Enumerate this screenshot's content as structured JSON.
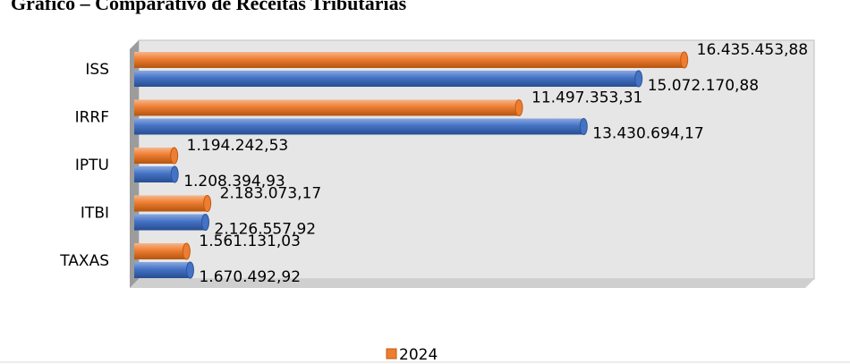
{
  "chart_data": {
    "type": "bar",
    "orientation": "horizontal",
    "title": "Gráfico – Comparativo de Receitas Tributárias",
    "categories": [
      "ISS",
      "IRRF",
      "IPTU",
      "ITBI",
      "TAXAS"
    ],
    "series": [
      {
        "name": "2024",
        "color": "#ed7d31",
        "values": [
          16435453.88,
          11497353.31,
          1194242.53,
          2183073.17,
          1561131.03
        ],
        "value_labels": [
          "16.435.453,88",
          "11.497.353,31",
          "1.194.242,53",
          "2.183.073,17",
          "1.561.131,03"
        ]
      },
      {
        "color": "#4472c4",
        "values": [
          15072170.88,
          13430694.17,
          1208394.93,
          2126557.92,
          1670492.92
        ],
        "value_labels": [
          "15.072.170,88",
          "13.430.694,17",
          "1.208.394,93",
          "2.126.557,92",
          "1.670.492,92"
        ]
      }
    ],
    "xlim": [
      0,
      20000000
    ],
    "legend": "bottom"
  }
}
